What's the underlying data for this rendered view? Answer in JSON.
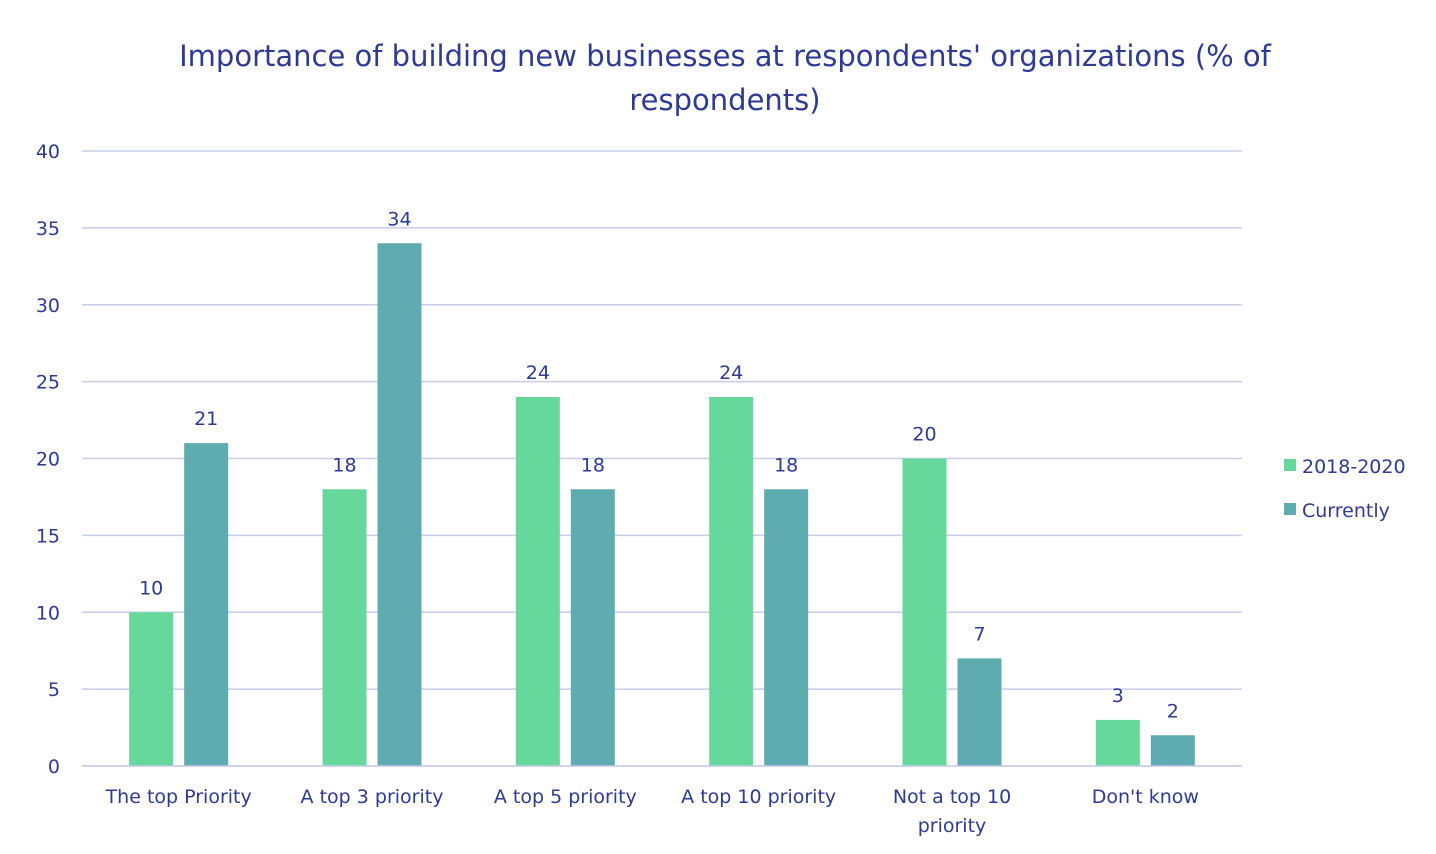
{
  "chart_data": {
    "type": "bar",
    "title": "Importance of building new businesses at respondents' organizations (% of respondents)",
    "xlabel": "",
    "ylabel": "",
    "categories": [
      [
        "The top Priority"
      ],
      [
        "A top 3 priority"
      ],
      [
        "A top 5 priority"
      ],
      [
        "A top 10 priority"
      ],
      [
        "Not a top 10",
        "priority"
      ],
      [
        "Don't know"
      ]
    ],
    "series": [
      {
        "name": "2018-2020",
        "color": "#67d89c",
        "values": [
          10,
          18,
          24,
          24,
          20,
          3
        ]
      },
      {
        "name": "Currently",
        "color": "#5eacb0",
        "values": [
          21,
          34,
          18,
          18,
          7,
          2
        ]
      }
    ],
    "ylim": [
      0,
      40
    ],
    "yticks": [
      0,
      5,
      10,
      15,
      20,
      25,
      30,
      35,
      40
    ],
    "grid": true,
    "gridline_color": "#c8cdeb",
    "text_color": "#2d3a96",
    "legend_position": "right"
  }
}
